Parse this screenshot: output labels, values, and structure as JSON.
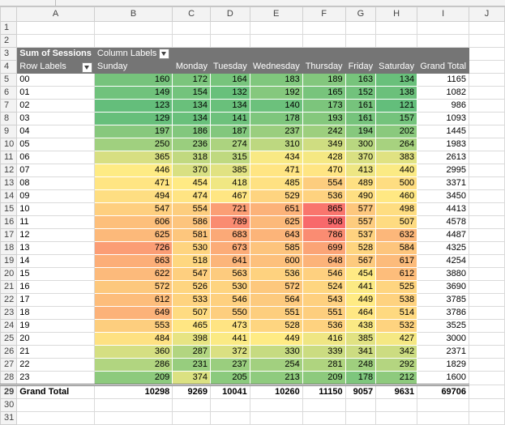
{
  "columns": [
    "A",
    "B",
    "C",
    "D",
    "E",
    "F",
    "G",
    "H",
    "I",
    "J"
  ],
  "row_numbers": [
    1,
    2,
    3,
    4,
    5,
    6,
    7,
    8,
    9,
    10,
    11,
    12,
    13,
    14,
    15,
    16,
    17,
    18,
    19,
    20,
    21,
    22,
    23,
    24,
    25,
    26,
    27,
    28,
    29,
    30,
    31
  ],
  "pivot": {
    "value_label": "Sum of Sessions",
    "column_labels": "Column Labels",
    "row_labels": "Row Labels",
    "days": [
      "Sunday",
      "Monday",
      "Tuesday",
      "Wednesday",
      "Thursday",
      "Friday",
      "Saturday"
    ],
    "grand_total_label": "Grand Total",
    "rows": [
      {
        "label": "00",
        "values": [
          160,
          172,
          164,
          183,
          189,
          163,
          134
        ],
        "total": 1165
      },
      {
        "label": "01",
        "values": [
          149,
          154,
          132,
          192,
          165,
          152,
          138
        ],
        "total": 1082
      },
      {
        "label": "02",
        "values": [
          123,
          134,
          134,
          140,
          173,
          161,
          121
        ],
        "total": 986
      },
      {
        "label": "03",
        "values": [
          129,
          134,
          141,
          178,
          193,
          161,
          157
        ],
        "total": 1093
      },
      {
        "label": "04",
        "values": [
          197,
          186,
          187,
          237,
          242,
          194,
          202
        ],
        "total": 1445
      },
      {
        "label": "05",
        "values": [
          250,
          236,
          274,
          310,
          349,
          300,
          264
        ],
        "total": 1983
      },
      {
        "label": "06",
        "values": [
          365,
          318,
          315,
          434,
          428,
          370,
          383
        ],
        "total": 2613
      },
      {
        "label": "07",
        "values": [
          446,
          370,
          385,
          471,
          470,
          413,
          440
        ],
        "total": 2995
      },
      {
        "label": "08",
        "values": [
          471,
          454,
          418,
          485,
          554,
          489,
          500
        ],
        "total": 3371
      },
      {
        "label": "09",
        "values": [
          494,
          474,
          467,
          529,
          536,
          490,
          460
        ],
        "total": 3450
      },
      {
        "label": "10",
        "values": [
          547,
          554,
          721,
          651,
          865,
          577,
          498
        ],
        "total": 4413
      },
      {
        "label": "11",
        "values": [
          606,
          586,
          789,
          625,
          908,
          557,
          507
        ],
        "total": 4578
      },
      {
        "label": "12",
        "values": [
          625,
          581,
          683,
          643,
          786,
          537,
          632
        ],
        "total": 4487
      },
      {
        "label": "13",
        "values": [
          726,
          530,
          673,
          585,
          699,
          528,
          584
        ],
        "total": 4325
      },
      {
        "label": "14",
        "values": [
          663,
          518,
          641,
          600,
          648,
          567,
          617
        ],
        "total": 4254
      },
      {
        "label": "15",
        "values": [
          622,
          547,
          563,
          536,
          546,
          454,
          612
        ],
        "total": 3880
      },
      {
        "label": "16",
        "values": [
          572,
          526,
          530,
          572,
          524,
          441,
          525
        ],
        "total": 3690
      },
      {
        "label": "17",
        "values": [
          612,
          533,
          546,
          564,
          543,
          449,
          538
        ],
        "total": 3785
      },
      {
        "label": "18",
        "values": [
          649,
          507,
          550,
          551,
          551,
          464,
          514
        ],
        "total": 3786
      },
      {
        "label": "19",
        "values": [
          553,
          465,
          473,
          528,
          536,
          438,
          532
        ],
        "total": 3525
      },
      {
        "label": "20",
        "values": [
          484,
          398,
          441,
          449,
          416,
          385,
          427
        ],
        "total": 3000
      },
      {
        "label": "21",
        "values": [
          360,
          287,
          372,
          330,
          339,
          341,
          342
        ],
        "total": 2371
      },
      {
        "label": "22",
        "values": [
          286,
          231,
          237,
          254,
          281,
          248,
          292
        ],
        "total": 1829
      },
      {
        "label": "23",
        "values": [
          209,
          374,
          205,
          213,
          209,
          178,
          212
        ],
        "total": 1600
      }
    ],
    "grand_totals": [
      10298,
      9269,
      10041,
      10260,
      11150,
      9057,
      9631
    ],
    "grand_total_all": 69706
  },
  "colors": {
    "low": "#63BE7B",
    "mid": "#FFEB84",
    "high": "#F8696B",
    "header": "#757575"
  }
}
